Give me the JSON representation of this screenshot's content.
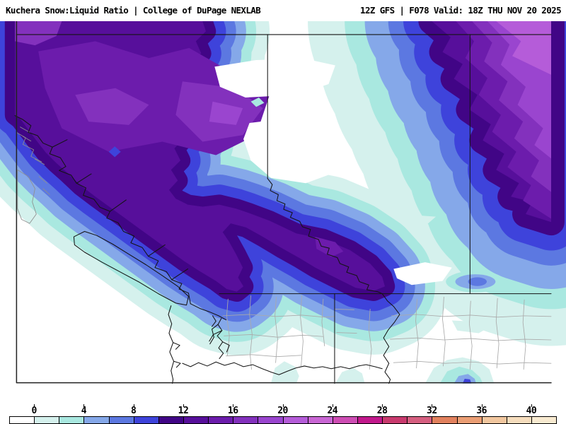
{
  "header": {
    "left": "Kuchera Snow:Liquid Ratio | College of DuPage NEXLAB",
    "right": "12Z GFS | F078 Valid: 18Z THU NOV 20 2025",
    "product": "Kuchera Snow:Liquid Ratio",
    "source": "College of DuPage NEXLAB",
    "model": "GFS",
    "run": "12Z",
    "forecast_hour": "F078",
    "valid": "18Z THU NOV 20 2025"
  },
  "colorbar": {
    "tick_labels": [
      "0",
      "4",
      "8",
      "12",
      "16",
      "20",
      "24",
      "28",
      "32",
      "36",
      "40"
    ],
    "level_edges": [
      -2,
      0,
      2,
      4,
      6,
      8,
      10,
      12,
      14,
      16,
      18,
      20,
      22,
      24,
      26,
      28,
      30,
      32,
      34,
      36,
      38,
      40,
      42
    ],
    "colors": [
      "#FFFFFF",
      "#D5F1ED",
      "#A9E8E0",
      "#85A8E9",
      "#5C78E1",
      "#3E43DB",
      "#410586",
      "#570F9B",
      "#6C1CAC",
      "#8331BD",
      "#9A45CF",
      "#B55CD9",
      "#C966D4",
      "#CE4DB4",
      "#C2188C",
      "#C93A6E",
      "#D65F80",
      "#E2815E",
      "#EB9E74",
      "#F2C79F",
      "#F6DDBD",
      "#F8EAD0"
    ]
  },
  "map": {
    "region": "British Columbia / Alberta / Washington / Idaho / Montana",
    "line_colors": {
      "coast": "#141414",
      "border": "#141414",
      "county": "#aaaaaa",
      "island_gray": "#8f8f8f",
      "frame": "#222222"
    },
    "background": "#FFFFFF"
  }
}
